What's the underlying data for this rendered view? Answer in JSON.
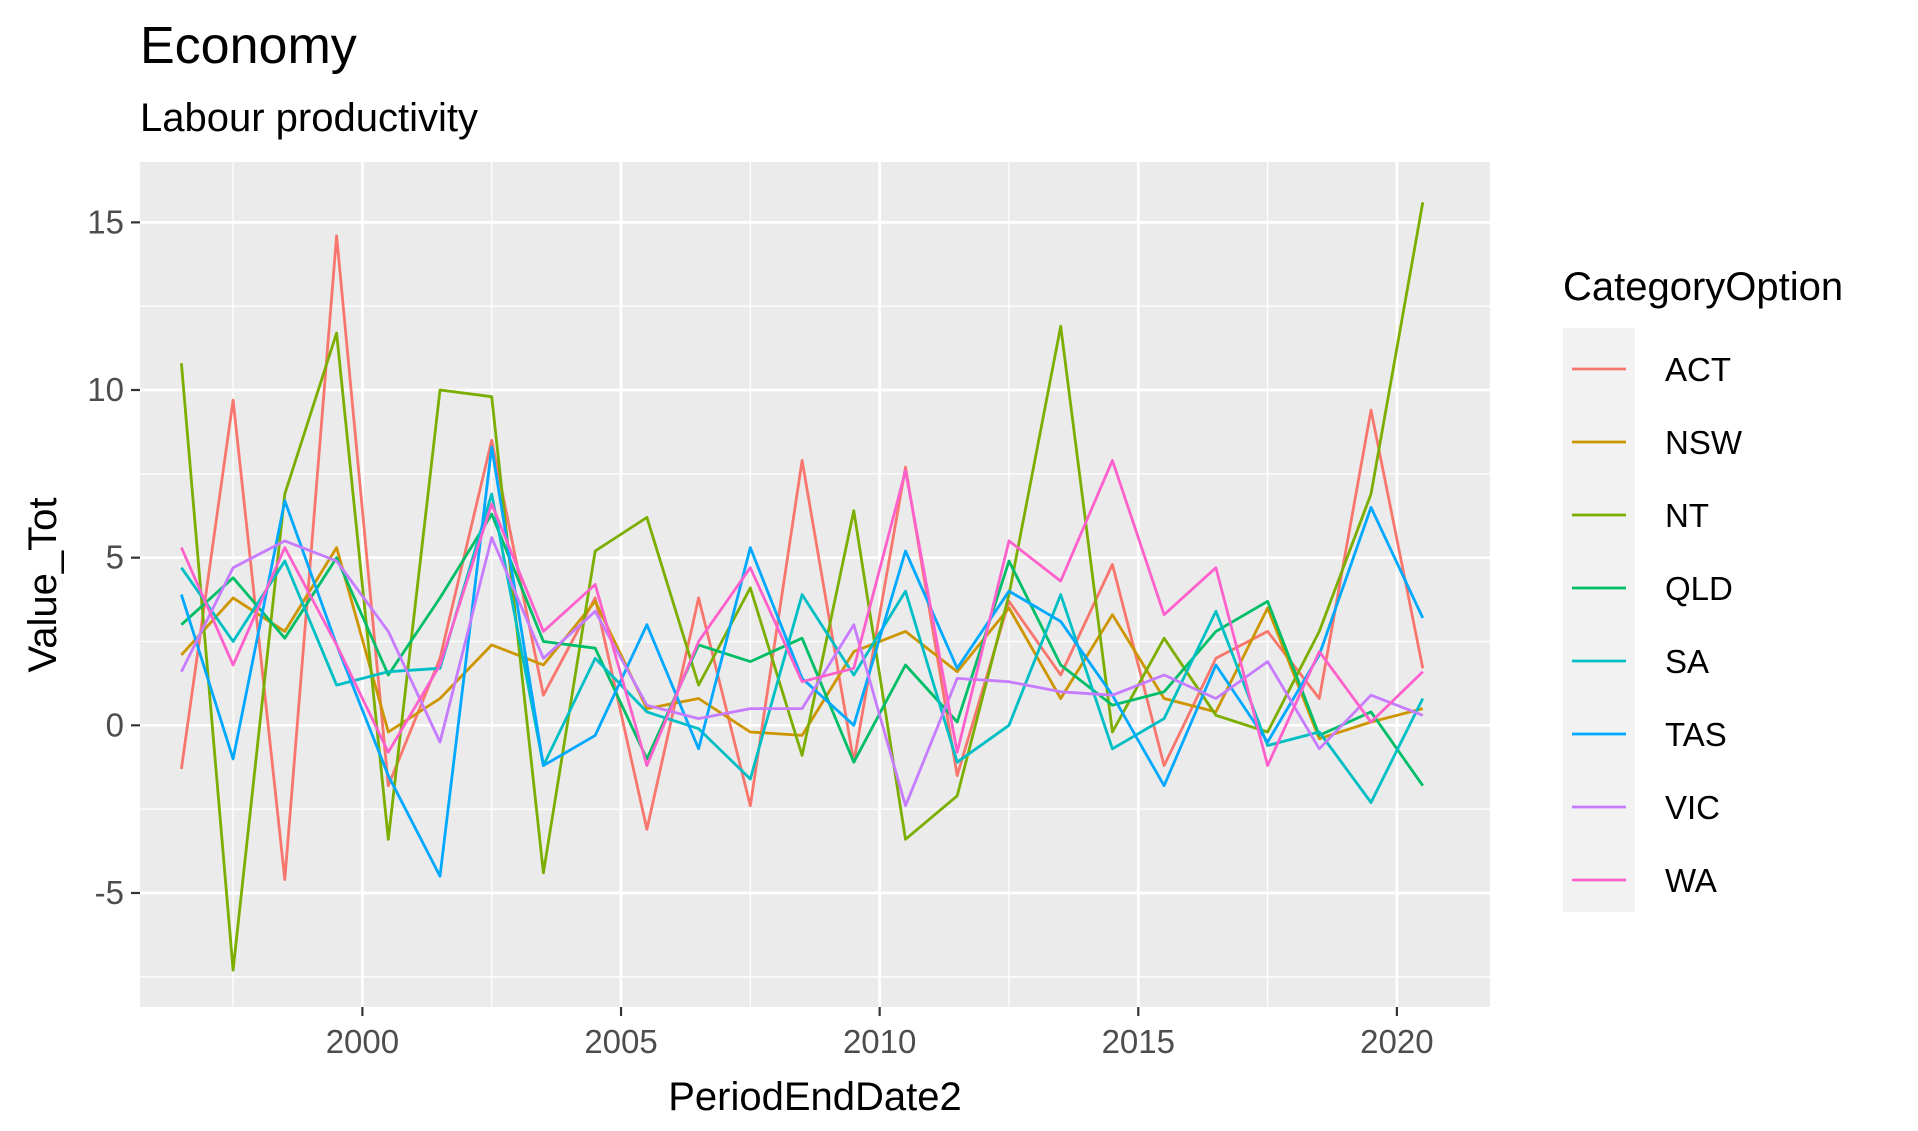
{
  "chart_data": {
    "type": "line",
    "title": "Economy",
    "subtitle": "Labour productivity",
    "xlabel": "PeriodEndDate2",
    "ylabel": "Value_Tot",
    "xlim": [
      1995.7,
      2021.8
    ],
    "ylim": [
      -8.4,
      16.8
    ],
    "x_ticks": [
      2000,
      2005,
      2010,
      2015,
      2020
    ],
    "y_ticks": [
      -5,
      0,
      5,
      10,
      15
    ],
    "x_tick_labels": [
      "2000",
      "2005",
      "2010",
      "2015",
      "2020"
    ],
    "y_tick_labels": [
      "-5",
      "0",
      "5",
      "10",
      "15"
    ],
    "grid": true,
    "legend": {
      "title": "CategoryOption",
      "position": "right"
    },
    "x": [
      1996.5,
      1997.5,
      1998.5,
      1999.5,
      2000.5,
      2001.5,
      2002.5,
      2003.5,
      2004.5,
      2005.5,
      2006.5,
      2007.5,
      2008.5,
      2009.5,
      2010.5,
      2011.5,
      2012.5,
      2013.5,
      2014.5,
      2015.5,
      2016.5,
      2017.5,
      2018.5,
      2019.5,
      2020.5
    ],
    "series": [
      {
        "name": "ACT",
        "color": "#F8766D",
        "values": [
          -1.3,
          9.7,
          -4.6,
          14.6,
          -1.8,
          2.0,
          8.5,
          0.9,
          3.8,
          -3.1,
          3.8,
          -2.4,
          7.9,
          -1.1,
          7.7,
          -1.5,
          3.7,
          1.5,
          4.8,
          -1.2,
          2.0,
          2.8,
          0.8,
          9.4,
          1.7
        ]
      },
      {
        "name": "NSW",
        "color": "#CD9600",
        "values": [
          2.1,
          3.8,
          2.8,
          5.3,
          -0.2,
          0.8,
          2.4,
          1.8,
          3.7,
          0.5,
          0.8,
          -0.2,
          -0.3,
          2.2,
          2.8,
          1.6,
          3.5,
          0.8,
          3.3,
          0.8,
          0.4,
          3.5,
          -0.4,
          0.1,
          0.5
        ]
      },
      {
        "name": "NT",
        "color": "#7CAE00",
        "values": [
          10.8,
          -7.3,
          6.9,
          11.7,
          -3.4,
          10.0,
          9.8,
          -4.4,
          5.2,
          6.2,
          1.2,
          4.1,
          -0.9,
          6.4,
          -3.4,
          -2.1,
          3.9,
          11.9,
          -0.2,
          2.6,
          0.3,
          -0.2,
          2.8,
          6.9,
          15.6
        ]
      },
      {
        "name": "QLD",
        "color": "#00BE67",
        "values": [
          3.0,
          4.4,
          2.6,
          5.0,
          1.5,
          3.8,
          6.3,
          2.5,
          2.3,
          -1.0,
          2.4,
          1.9,
          2.6,
          -1.1,
          1.8,
          0.1,
          4.9,
          1.8,
          0.6,
          1.0,
          2.8,
          3.7,
          -0.3,
          0.4,
          -1.8
        ]
      },
      {
        "name": "SA",
        "color": "#00BFC4",
        "values": [
          4.7,
          2.5,
          4.9,
          1.2,
          1.6,
          1.7,
          6.9,
          -1.2,
          2.0,
          0.4,
          -0.1,
          -1.6,
          3.9,
          1.5,
          4.0,
          -1.1,
          0.0,
          3.9,
          -0.7,
          0.2,
          3.4,
          -0.6,
          -0.2,
          -2.3,
          0.8
        ]
      },
      {
        "name": "TAS",
        "color": "#00A9FF",
        "values": [
          3.9,
          -1.0,
          6.7,
          2.4,
          -1.5,
          -4.5,
          8.3,
          -1.2,
          -0.3,
          3.0,
          -0.7,
          5.3,
          1.4,
          0.0,
          5.2,
          1.7,
          4.0,
          3.1,
          0.9,
          -1.8,
          1.8,
          -0.5,
          2.1,
          6.5,
          3.2
        ]
      },
      {
        "name": "VIC",
        "color": "#C77CFF",
        "values": [
          1.6,
          4.7,
          5.5,
          4.9,
          2.8,
          -0.5,
          5.6,
          2.0,
          3.4,
          0.6,
          0.2,
          0.5,
          0.5,
          3.0,
          -2.4,
          1.4,
          1.3,
          1.0,
          0.9,
          1.5,
          0.8,
          1.9,
          -0.7,
          0.9,
          0.3
        ]
      },
      {
        "name": "WA",
        "color": "#FF61CC",
        "values": [
          5.3,
          1.8,
          5.3,
          2.4,
          -0.8,
          1.8,
          6.6,
          2.8,
          4.2,
          -1.2,
          2.5,
          4.7,
          1.3,
          1.7,
          7.6,
          -0.8,
          5.5,
          4.3,
          7.9,
          3.3,
          4.7,
          -1.2,
          2.2,
          0.1,
          1.6
        ]
      }
    ]
  }
}
